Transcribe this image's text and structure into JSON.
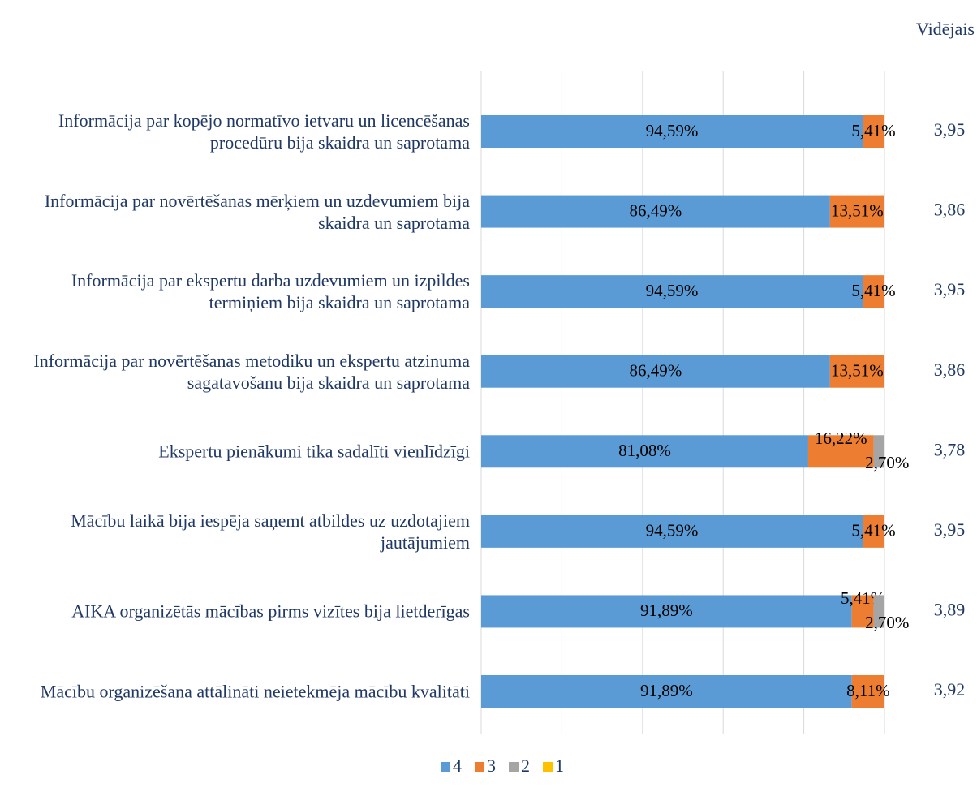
{
  "chart_data": {
    "type": "stacked_bar_horizontal",
    "categories": [
      "Informācija par kopējo normatīvo ietvaru un licencēšanas procedūru bija skaidra un saprotama",
      "Informācija par novērtēšanas mērķiem un uzdevumiem bija skaidra un saprotama",
      "Informācija par ekspertu darba uzdevumiem un izpildes termiņiem bija skaidra un saprotama",
      "Informācija par novērtēšanas metodiku un ekspertu atzinuma sagatavošanu bija skaidra un saprotama",
      "Ekspertu pienākumi tika sadalīti vienlīdzīgi",
      "Mācību laikā bija iespēja saņemt atbildes uz uzdotajiem jautājumiem",
      "AIKA organizētās mācības pirms vizītes bija lietderīgas",
      "Mācību organizēšana attālināti neietekmēja mācību kvalitāti"
    ],
    "series": [
      {
        "name": "4",
        "color": "#5b9bd5",
        "values": [
          94.59,
          86.49,
          94.59,
          86.49,
          81.08,
          94.59,
          91.89,
          91.89
        ],
        "value_labels": [
          "94,59%",
          "86,49%",
          "94,59%",
          "86,49%",
          "81,08%",
          "94,59%",
          "91,89%",
          "91,89%"
        ]
      },
      {
        "name": "3",
        "color": "#ed7d31",
        "values": [
          5.41,
          13.51,
          5.41,
          13.51,
          16.22,
          5.41,
          5.41,
          8.11
        ],
        "value_labels": [
          "5,41%",
          "13,51%",
          "5,41%",
          "13,51%",
          "16,22%",
          "5,41%",
          "5,41%",
          "8,11%"
        ]
      },
      {
        "name": "2",
        "color": "#a5a5a5",
        "values": [
          0,
          0,
          0,
          0,
          2.7,
          0,
          2.7,
          0
        ],
        "value_labels": [
          null,
          null,
          null,
          null,
          "2,70%",
          null,
          "2,70%",
          null
        ]
      },
      {
        "name": "1",
        "color": "#ffc000",
        "values": [
          0,
          0,
          0,
          0,
          0,
          0,
          0,
          0
        ],
        "value_labels": [
          null,
          null,
          null,
          null,
          null,
          null,
          null,
          null
        ]
      }
    ],
    "average_title": "Vidējais",
    "averages": [
      3.95,
      3.86,
      3.95,
      3.86,
      3.78,
      3.95,
      3.89,
      3.92
    ],
    "average_labels": [
      "3,95",
      "3,86",
      "3,95",
      "3,86",
      "3,78",
      "3,95",
      "3,89",
      "3,92"
    ],
    "xlim": [
      0,
      100
    ],
    "xticks": [
      0,
      20,
      40,
      60,
      80,
      100
    ],
    "grid": true,
    "legend": "bottom"
  }
}
